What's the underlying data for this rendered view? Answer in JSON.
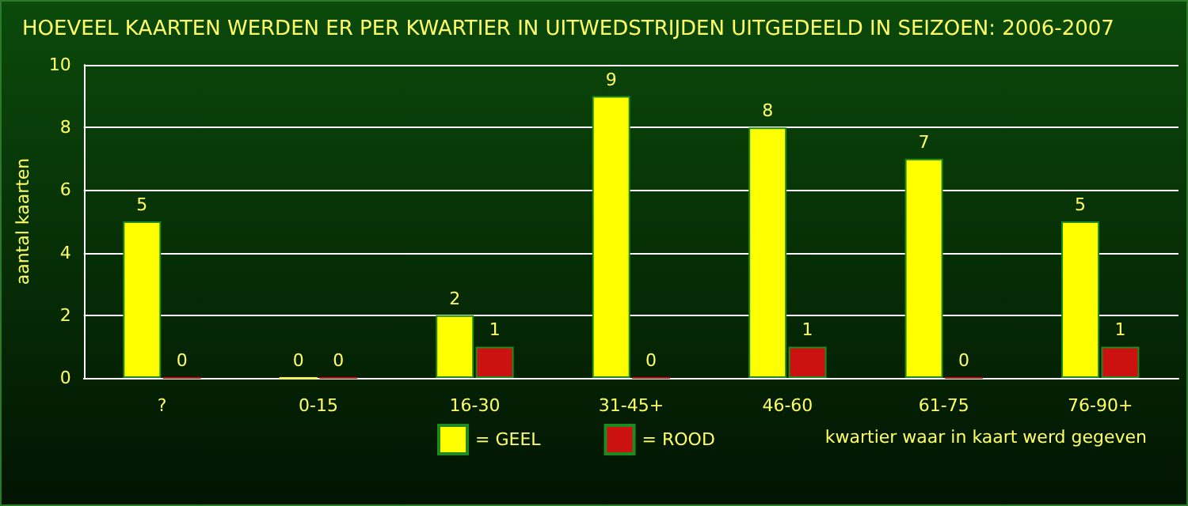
{
  "chart_data": {
    "type": "bar",
    "title": "HOEVEEL KAARTEN WERDEN ER PER KWARTIER IN UITWEDSTRIJDEN UITGEDEELD IN SEIZOEN: 2006-2007",
    "xlabel": "kwartier waar in kaart werd gegeven",
    "ylabel": "aantal kaarten",
    "categories": [
      "?",
      "0-15",
      "16-30",
      "31-45+",
      "46-60",
      "61-75",
      "76-90+"
    ],
    "series": [
      {
        "name": "= GEEL",
        "color": "#ffff00",
        "values": [
          5,
          0,
          2,
          9,
          8,
          7,
          5
        ]
      },
      {
        "name": "= ROOD",
        "color": "#cc1111",
        "values": [
          0,
          0,
          1,
          0,
          1,
          0,
          1
        ]
      }
    ],
    "ylim": [
      0,
      10
    ],
    "yticks": [
      0,
      2,
      4,
      6,
      8,
      10
    ],
    "grid": "y",
    "legend": "bottom",
    "data_labels": true
  }
}
